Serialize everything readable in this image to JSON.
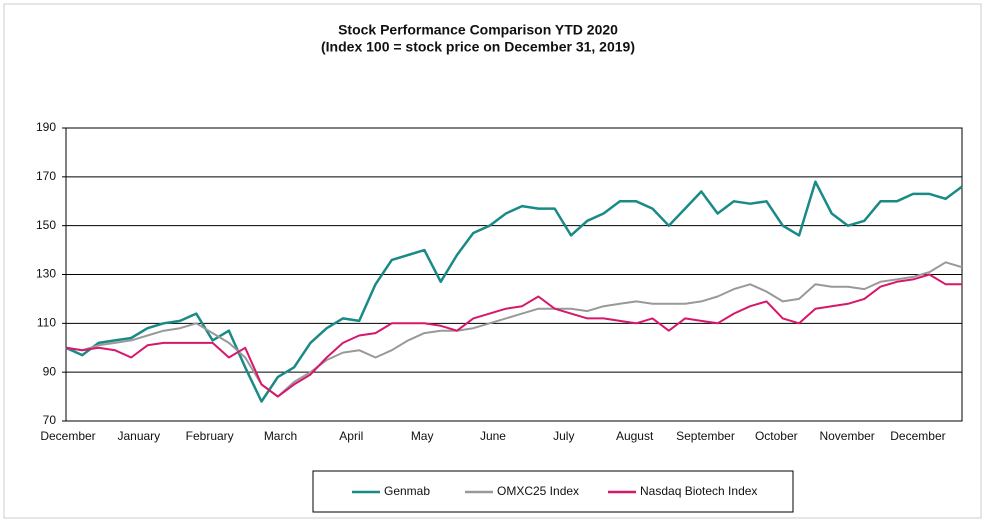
{
  "chart_data": {
    "type": "line",
    "title": "Stock Performance Comparison YTD 2020",
    "subtitle": "(Index 100 = stock price on December 31, 2019)",
    "x_labels": [
      "December",
      "January",
      "February",
      "March",
      "April",
      "May",
      "June",
      "July",
      "August",
      "September",
      "October",
      "November",
      "December"
    ],
    "ylim": [
      70,
      190
    ],
    "yticks": [
      70,
      90,
      110,
      130,
      150,
      170,
      190
    ],
    "grid": true,
    "legend": "bottom",
    "series": [
      {
        "name": "Genmab",
        "color": "#1a8a86",
        "values": [
          100,
          97,
          102,
          103,
          104,
          108,
          110,
          111,
          114,
          103,
          107,
          92,
          78,
          88,
          92,
          102,
          108,
          112,
          111,
          126,
          136,
          138,
          140,
          127,
          138,
          147,
          150,
          155,
          158,
          157,
          157,
          146,
          152,
          155,
          160,
          160,
          157,
          150,
          157,
          164,
          155,
          160,
          159,
          160,
          150,
          146,
          168,
          155,
          150,
          152,
          160,
          160,
          163,
          163,
          161,
          166
        ]
      },
      {
        "name": "OMXC25 Index",
        "color": "#999999",
        "values": [
          100,
          99,
          101,
          102,
          103,
          105,
          107,
          108,
          110,
          106,
          102,
          96,
          85,
          80,
          86,
          90,
          95,
          98,
          99,
          96,
          99,
          103,
          106,
          107,
          107,
          108,
          110,
          112,
          114,
          116,
          116,
          116,
          115,
          117,
          118,
          119,
          118,
          118,
          118,
          119,
          121,
          124,
          126,
          123,
          119,
          120,
          126,
          125,
          125,
          124,
          127,
          128,
          129,
          131,
          135,
          133
        ]
      },
      {
        "name": "Nasdaq Biotech Index",
        "color": "#d6176b",
        "values": [
          100,
          99,
          100,
          99,
          96,
          101,
          102,
          102,
          102,
          102,
          96,
          100,
          85,
          80,
          85,
          89,
          96,
          102,
          105,
          106,
          110,
          110,
          110,
          109,
          107,
          112,
          114,
          116,
          117,
          121,
          116,
          114,
          112,
          112,
          111,
          110,
          112,
          107,
          112,
          111,
          110,
          114,
          117,
          119,
          112,
          110,
          116,
          117,
          118,
          120,
          125,
          127,
          128,
          130,
          126,
          126
        ]
      }
    ]
  }
}
